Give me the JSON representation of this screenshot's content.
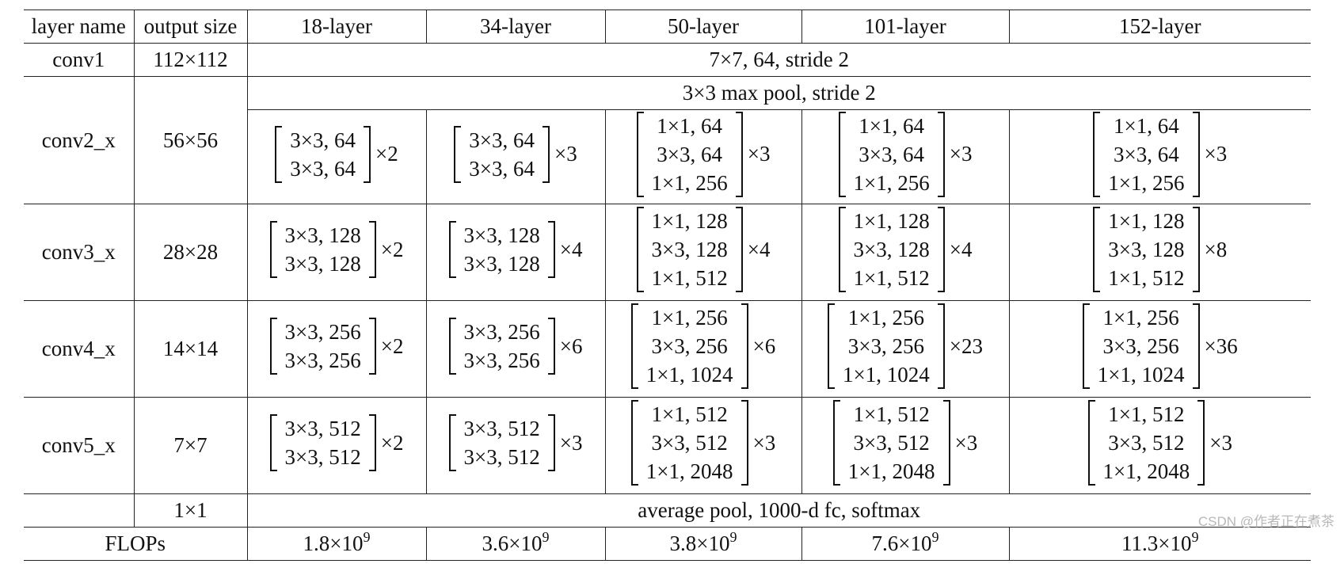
{
  "headers": [
    "layer name",
    "output size",
    "18-layer",
    "34-layer",
    "50-layer",
    "101-layer",
    "152-layer"
  ],
  "conv1": {
    "name": "conv1",
    "size": "112×112",
    "spec": "7×7, 64, stride 2"
  },
  "conv2": {
    "name": "conv2_x",
    "size": "56×56",
    "pool": "3×3 max pool, stride 2",
    "blocks": [
      {
        "lines": [
          "3×3, 64",
          "3×3, 64"
        ],
        "rep": "×2"
      },
      {
        "lines": [
          "3×3, 64",
          "3×3, 64"
        ],
        "rep": "×3"
      },
      {
        "lines": [
          "1×1, 64",
          "3×3, 64",
          "1×1, 256"
        ],
        "rep": "×3"
      },
      {
        "lines": [
          "1×1, 64",
          "3×3, 64",
          "1×1, 256"
        ],
        "rep": "×3"
      },
      {
        "lines": [
          "1×1, 64",
          "3×3, 64",
          "1×1, 256"
        ],
        "rep": "×3"
      }
    ]
  },
  "conv3": {
    "name": "conv3_x",
    "size": "28×28",
    "blocks": [
      {
        "lines": [
          "3×3, 128",
          "3×3, 128"
        ],
        "rep": "×2"
      },
      {
        "lines": [
          "3×3, 128",
          "3×3, 128"
        ],
        "rep": "×4"
      },
      {
        "lines": [
          "1×1, 128",
          "3×3, 128",
          "1×1, 512"
        ],
        "rep": "×4"
      },
      {
        "lines": [
          "1×1, 128",
          "3×3, 128",
          "1×1, 512"
        ],
        "rep": "×4"
      },
      {
        "lines": [
          "1×1, 128",
          "3×3, 128",
          "1×1, 512"
        ],
        "rep": "×8"
      }
    ]
  },
  "conv4": {
    "name": "conv4_x",
    "size": "14×14",
    "blocks": [
      {
        "lines": [
          "3×3, 256",
          "3×3, 256"
        ],
        "rep": "×2"
      },
      {
        "lines": [
          "3×3, 256",
          "3×3, 256"
        ],
        "rep": "×6"
      },
      {
        "lines": [
          "1×1, 256",
          "3×3, 256",
          "1×1, 1024"
        ],
        "rep": "×6"
      },
      {
        "lines": [
          "1×1, 256",
          "3×3, 256",
          "1×1, 1024"
        ],
        "rep": "×23"
      },
      {
        "lines": [
          "1×1, 256",
          "3×3, 256",
          "1×1, 1024"
        ],
        "rep": "×36"
      }
    ]
  },
  "conv5": {
    "name": "conv5_x",
    "size": "7×7",
    "blocks": [
      {
        "lines": [
          "3×3, 512",
          "3×3, 512"
        ],
        "rep": "×2"
      },
      {
        "lines": [
          "3×3, 512",
          "3×3, 512"
        ],
        "rep": "×3"
      },
      {
        "lines": [
          "1×1, 512",
          "3×3, 512",
          "1×1, 2048"
        ],
        "rep": "×3"
      },
      {
        "lines": [
          "1×1, 512",
          "3×3, 512",
          "1×1, 2048"
        ],
        "rep": "×3"
      },
      {
        "lines": [
          "1×1, 512",
          "3×3, 512",
          "1×1, 2048"
        ],
        "rep": "×3"
      }
    ]
  },
  "avgpool": {
    "size": "1×1",
    "spec": "average pool, 1000-d fc, softmax"
  },
  "flops": {
    "label": "FLOPs",
    "values": [
      {
        "mant": "1.8×10",
        "exp": "9"
      },
      {
        "mant": "3.6×10",
        "exp": "9"
      },
      {
        "mant": "3.8×10",
        "exp": "9"
      },
      {
        "mant": "7.6×10",
        "exp": "9"
      },
      {
        "mant": "11.3×10",
        "exp": "9"
      }
    ]
  },
  "watermark": "CSDN @作者正在煮茶"
}
